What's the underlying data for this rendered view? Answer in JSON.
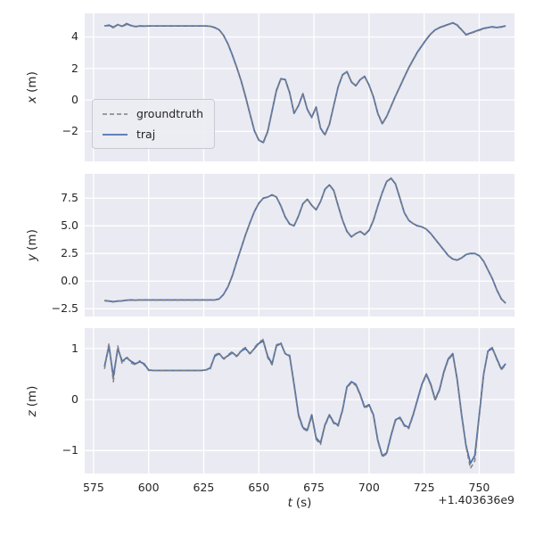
{
  "figure": {
    "background": "#ffffff",
    "axes_background": "#eaeaf2",
    "grid_color": "#ffffff",
    "text_color": "#262626"
  },
  "chart_data": {
    "type": "line",
    "title": "",
    "xlabel": "t (s)",
    "xlabel_var": "t",
    "xlabel_unit": "(s)",
    "x_axis_offset": "+1.403636e9",
    "xlim": [
      571,
      766
    ],
    "x_ticks": [
      575,
      600,
      625,
      650,
      675,
      700,
      725,
      750
    ],
    "x_tick_labels": [
      "575",
      "600",
      "625",
      "650",
      "675",
      "700",
      "725",
      "750"
    ],
    "grid": true,
    "legend": {
      "position": "center-left-of-x-subplot",
      "entries": [
        {
          "label": "groundtruth",
          "color": "#7f7f7f",
          "line_style": "dashed"
        },
        {
          "label": "traj",
          "color": "#4c72b0",
          "line_style": "solid"
        }
      ]
    },
    "t": [
      580,
      582,
      584,
      586,
      588,
      590,
      592,
      594,
      596,
      598,
      600,
      602,
      604,
      606,
      608,
      610,
      612,
      614,
      616,
      618,
      620,
      622,
      624,
      626,
      628,
      630,
      632,
      634,
      636,
      638,
      640,
      642,
      644,
      646,
      648,
      650,
      652,
      654,
      656,
      658,
      660,
      662,
      664,
      666,
      668,
      670,
      672,
      674,
      676,
      678,
      680,
      682,
      684,
      686,
      688,
      690,
      692,
      694,
      696,
      698,
      700,
      702,
      704,
      706,
      708,
      710,
      712,
      714,
      716,
      718,
      720,
      722,
      724,
      726,
      728,
      730,
      732,
      734,
      736,
      738,
      740,
      742,
      744,
      746,
      748,
      750,
      752,
      754,
      756,
      758,
      760,
      762
    ],
    "subplots": [
      {
        "ylabel": "x (m)",
        "ylabel_var": "x",
        "ylabel_unit": "(m)",
        "ylim": [
          -3.9,
          5.5
        ],
        "y_ticks": [
          4,
          2,
          0,
          -2
        ],
        "y_tick_labels": [
          "4",
          "2",
          "0",
          "−2"
        ],
        "series": [
          {
            "name": "groundtruth",
            "values": [
              4.72,
              4.7,
              4.58,
              4.8,
              4.65,
              4.8,
              4.75,
              4.63,
              4.72,
              4.7,
              4.7,
              4.7,
              4.7,
              4.7,
              4.7,
              4.7,
              4.7,
              4.7,
              4.7,
              4.7,
              4.7,
              4.7,
              4.7,
              4.7,
              4.68,
              4.62,
              4.47,
              4.12,
              3.58,
              2.88,
              2.08,
              1.24,
              0.25,
              -0.86,
              -1.92,
              -2.53,
              -2.75,
              -2.05,
              -0.74,
              0.56,
              1.32,
              1.28,
              0.42,
              -0.82,
              -0.38,
              0.36,
              -0.63,
              -1.13,
              -0.48,
              -1.83,
              -2.25,
              -1.58,
              -0.38,
              0.82,
              1.58,
              1.78,
              1.12,
              0.88,
              1.28,
              1.48,
              0.92,
              0.18,
              -0.88,
              -1.53,
              -1.08,
              -0.42,
              0.22,
              0.82,
              1.42,
              2.02,
              2.52,
              3.02,
              3.42,
              3.82,
              4.18,
              4.43,
              4.58,
              4.68,
              4.78,
              4.88,
              4.78,
              4.48,
              4.12,
              4.22,
              4.32,
              4.42,
              4.52,
              4.58,
              4.62,
              4.58,
              4.62,
              4.68
            ]
          },
          {
            "name": "traj",
            "values": [
              4.7,
              4.75,
              4.62,
              4.78,
              4.68,
              4.85,
              4.72,
              4.66,
              4.7,
              4.69,
              4.7,
              4.7,
              4.7,
              4.7,
              4.7,
              4.7,
              4.7,
              4.7,
              4.7,
              4.7,
              4.7,
              4.7,
              4.7,
              4.7,
              4.68,
              4.6,
              4.45,
              4.1,
              3.55,
              2.85,
              2.05,
              1.2,
              0.2,
              -0.9,
              -1.95,
              -2.55,
              -2.7,
              -2.0,
              -0.7,
              0.6,
              1.35,
              1.3,
              0.45,
              -0.85,
              -0.35,
              0.4,
              -0.6,
              -1.1,
              -0.45,
              -1.8,
              -2.2,
              -1.55,
              -0.35,
              0.85,
              1.6,
              1.8,
              1.15,
              0.9,
              1.3,
              1.5,
              0.95,
              0.2,
              -0.85,
              -1.5,
              -1.05,
              -0.4,
              0.25,
              0.85,
              1.45,
              2.05,
              2.55,
              3.05,
              3.45,
              3.85,
              4.2,
              4.45,
              4.6,
              4.7,
              4.8,
              4.9,
              4.75,
              4.45,
              4.15,
              4.25,
              4.35,
              4.45,
              4.55,
              4.6,
              4.65,
              4.6,
              4.65,
              4.7
            ]
          }
        ]
      },
      {
        "ylabel": "y (m)",
        "ylabel_var": "y",
        "ylabel_unit": "(m)",
        "ylim": [
          -3.2,
          9.7
        ],
        "y_ticks": [
          7.5,
          5.0,
          2.5,
          0.0,
          -2.5
        ],
        "y_tick_labels": [
          "7.5",
          "5.0",
          "2.5",
          "0.0",
          "−2.5"
        ],
        "series": [
          {
            "name": "groundtruth",
            "values": [
              -1.78,
              -1.82,
              -1.88,
              -1.82,
              -1.8,
              -1.75,
              -1.72,
              -1.74,
              -1.72,
              -1.72,
              -1.72,
              -1.72,
              -1.72,
              -1.72,
              -1.72,
              -1.72,
              -1.72,
              -1.72,
              -1.72,
              -1.72,
              -1.72,
              -1.72,
              -1.72,
              -1.72,
              -1.72,
              -1.71,
              -1.62,
              -1.22,
              -0.52,
              0.47,
              1.77,
              2.97,
              4.17,
              5.27,
              6.27,
              7.02,
              7.48,
              7.58,
              7.82,
              7.62,
              6.83,
              5.83,
              5.18,
              5.02,
              5.88,
              6.98,
              7.42,
              6.87,
              6.43,
              7.18,
              8.32,
              8.73,
              8.23,
              6.83,
              5.52,
              4.52,
              4.02,
              4.28,
              4.48,
              4.18,
              4.58,
              5.48,
              6.78,
              7.98,
              9.02,
              9.33,
              8.83,
              7.53,
              6.22,
              5.52,
              5.22,
              5.02,
              4.92,
              4.72,
              4.32,
              3.82,
              3.32,
              2.82,
              2.32,
              2.02,
              1.92,
              2.12,
              2.42,
              2.52,
              2.52,
              2.32,
              1.82,
              1.02,
              0.22,
              -0.78,
              -1.58,
              -1.98
            ]
          },
          {
            "name": "traj",
            "values": [
              -1.75,
              -1.8,
              -1.85,
              -1.8,
              -1.78,
              -1.72,
              -1.7,
              -1.72,
              -1.7,
              -1.7,
              -1.7,
              -1.7,
              -1.7,
              -1.7,
              -1.7,
              -1.7,
              -1.7,
              -1.7,
              -1.7,
              -1.7,
              -1.7,
              -1.7,
              -1.7,
              -1.7,
              -1.7,
              -1.7,
              -1.6,
              -1.2,
              -0.5,
              0.5,
              1.8,
              3.0,
              4.2,
              5.3,
              6.3,
              7.05,
              7.5,
              7.6,
              7.8,
              7.6,
              6.8,
              5.8,
              5.15,
              5.0,
              5.9,
              7.0,
              7.4,
              6.85,
              6.45,
              7.2,
              8.3,
              8.7,
              8.2,
              6.8,
              5.5,
              4.5,
              4.0,
              4.3,
              4.5,
              4.2,
              4.6,
              5.5,
              6.8,
              8.0,
              9.0,
              9.3,
              8.8,
              7.5,
              6.2,
              5.5,
              5.2,
              5.0,
              4.9,
              4.7,
              4.3,
              3.8,
              3.3,
              2.8,
              2.3,
              2.0,
              1.9,
              2.1,
              2.4,
              2.5,
              2.5,
              2.3,
              1.8,
              1.0,
              0.2,
              -0.8,
              -1.6,
              -2.0
            ]
          }
        ]
      },
      {
        "ylabel": "z (m)",
        "ylabel_var": "z",
        "ylabel_unit": "(m)",
        "ylim": [
          -1.45,
          1.4
        ],
        "y_ticks": [
          1,
          0,
          -1
        ],
        "y_tick_labels": [
          "1",
          "0",
          "−1"
        ],
        "series": [
          {
            "name": "groundtruth",
            "values": [
              0.6,
              1.1,
              0.35,
              1.05,
              0.7,
              0.85,
              0.72,
              0.68,
              0.76,
              0.68,
              0.57,
              0.57,
              0.57,
              0.57,
              0.57,
              0.57,
              0.57,
              0.57,
              0.57,
              0.57,
              0.57,
              0.57,
              0.57,
              0.58,
              0.6,
              0.87,
              0.92,
              0.78,
              0.88,
              0.94,
              0.83,
              0.97,
              1.02,
              0.88,
              1.02,
              1.12,
              1.18,
              0.82,
              0.68,
              1.07,
              1.12,
              0.88,
              0.87,
              0.27,
              -0.33,
              -0.57,
              -0.62,
              -0.33,
              -0.78,
              -0.88,
              -0.52,
              -0.32,
              -0.47,
              -0.52,
              -0.22,
              0.23,
              0.33,
              0.28,
              0.08,
              -0.17,
              -0.12,
              -0.32,
              -0.82,
              -1.12,
              -1.07,
              -0.72,
              -0.42,
              -0.37,
              -0.52,
              -0.57,
              -0.32,
              -0.02,
              0.28,
              0.48,
              0.28,
              -0.02,
              0.18,
              0.53,
              0.78,
              0.88,
              0.38,
              -0.32,
              -0.92,
              -1.35,
              -1.2,
              -0.32,
              0.48,
              0.97,
              1.02,
              0.78,
              0.58,
              0.68
            ]
          },
          {
            "name": "traj",
            "values": [
              0.65,
              1.05,
              0.45,
              1.0,
              0.75,
              0.82,
              0.75,
              0.7,
              0.74,
              0.7,
              0.58,
              0.57,
              0.57,
              0.57,
              0.57,
              0.57,
              0.57,
              0.57,
              0.57,
              0.57,
              0.57,
              0.57,
              0.57,
              0.58,
              0.62,
              0.85,
              0.9,
              0.8,
              0.86,
              0.92,
              0.85,
              0.95,
              1.0,
              0.9,
              1.0,
              1.1,
              1.15,
              0.85,
              0.7,
              1.05,
              1.1,
              0.9,
              0.85,
              0.3,
              -0.3,
              -0.55,
              -0.6,
              -0.3,
              -0.75,
              -0.85,
              -0.5,
              -0.3,
              -0.45,
              -0.5,
              -0.2,
              0.25,
              0.35,
              0.3,
              0.1,
              -0.15,
              -0.1,
              -0.3,
              -0.8,
              -1.1,
              -1.05,
              -0.7,
              -0.4,
              -0.35,
              -0.5,
              -0.55,
              -0.3,
              0.0,
              0.3,
              0.5,
              0.3,
              0.0,
              0.2,
              0.55,
              0.8,
              0.9,
              0.4,
              -0.3,
              -0.9,
              -1.25,
              -1.1,
              -0.3,
              0.5,
              0.95,
              1.0,
              0.8,
              0.6,
              0.7
            ]
          }
        ]
      }
    ]
  }
}
